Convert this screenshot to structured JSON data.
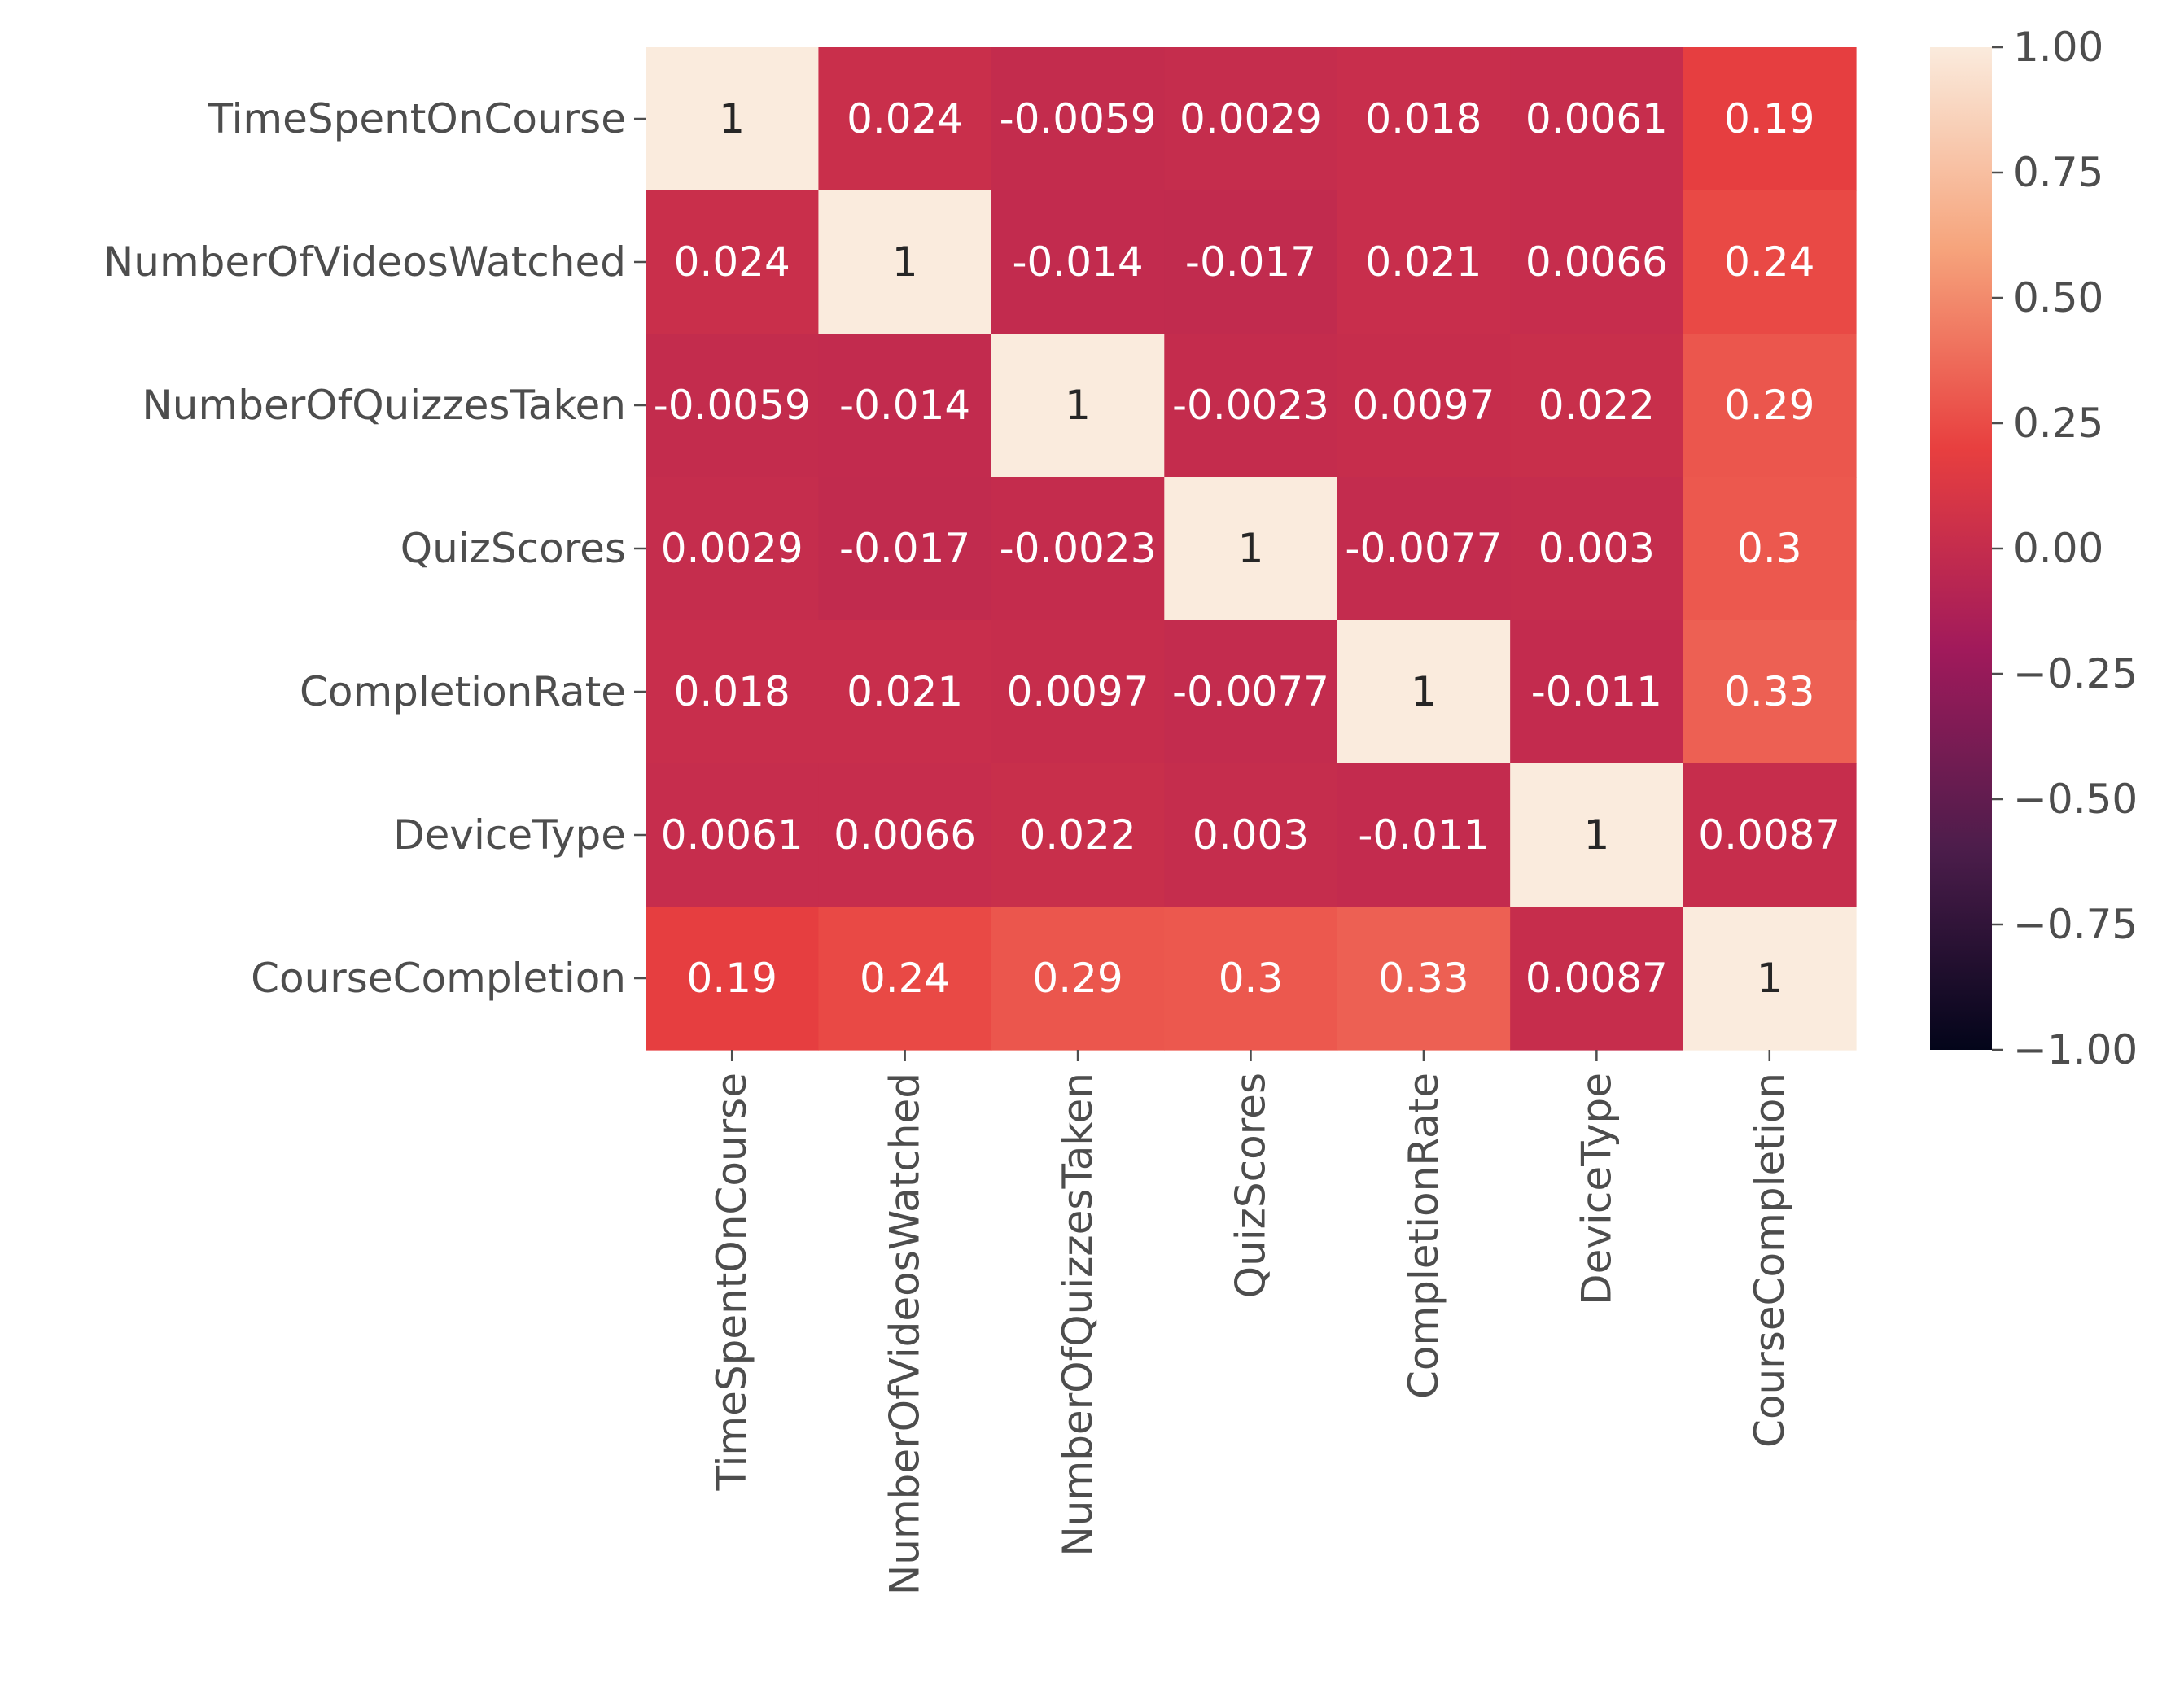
{
  "chart_data": {
    "type": "heatmap",
    "title": "",
    "xlabel": "",
    "ylabel": "",
    "row_labels": [
      "TimeSpentOnCourse",
      "NumberOfVideosWatched",
      "NumberOfQuizzesTaken",
      "QuizScores",
      "CompletionRate",
      "DeviceType",
      "CourseCompletion"
    ],
    "col_labels": [
      "TimeSpentOnCourse",
      "NumberOfVideosWatched",
      "NumberOfQuizzesTaken",
      "QuizScores",
      "CompletionRate",
      "DeviceType",
      "CourseCompletion"
    ],
    "values": [
      [
        1,
        0.024,
        -0.0059,
        0.0029,
        0.018,
        0.0061,
        0.19
      ],
      [
        0.024,
        1,
        -0.014,
        -0.017,
        0.021,
        0.0066,
        0.24
      ],
      [
        -0.0059,
        -0.014,
        1,
        -0.0023,
        0.0097,
        0.022,
        0.29
      ],
      [
        0.0029,
        -0.017,
        -0.0023,
        1,
        -0.0077,
        0.003,
        0.3
      ],
      [
        0.018,
        0.021,
        0.0097,
        -0.0077,
        1,
        -0.011,
        0.33
      ],
      [
        0.0061,
        0.0066,
        0.022,
        0.003,
        -0.011,
        1,
        0.0087
      ],
      [
        0.19,
        0.24,
        0.29,
        0.3,
        0.33,
        0.0087,
        1
      ]
    ],
    "cell_labels": [
      [
        "1",
        "0.024",
        "-0.0059",
        "0.0029",
        "0.018",
        "0.0061",
        "0.19"
      ],
      [
        "0.024",
        "1",
        "-0.014",
        "-0.017",
        "0.021",
        "0.0066",
        "0.24"
      ],
      [
        "-0.0059",
        "-0.014",
        "1",
        "-0.0023",
        "0.0097",
        "0.022",
        "0.29"
      ],
      [
        "0.0029",
        "-0.017",
        "-0.0023",
        "1",
        "-0.0077",
        "0.003",
        "0.3"
      ],
      [
        "0.018",
        "0.021",
        "0.0097",
        "-0.0077",
        "1",
        "-0.011",
        "0.33"
      ],
      [
        "0.0061",
        "0.0066",
        "0.022",
        "0.003",
        "-0.011",
        "1",
        "0.0087"
      ],
      [
        "0.19",
        "0.24",
        "0.29",
        "0.3",
        "0.33",
        "0.0087",
        "1"
      ]
    ],
    "colorbar": {
      "range": [
        -1,
        1
      ],
      "ticks": [
        1.0,
        0.75,
        0.5,
        0.25,
        0.0,
        -0.25,
        -0.5,
        -0.75,
        -1.0
      ],
      "tick_labels": [
        "1.00",
        "0.75",
        "0.50",
        "0.25",
        "0.00",
        "−0.25",
        "−0.50",
        "−0.75",
        "−1.00"
      ],
      "colormap": "rocket",
      "color_stops": [
        "#03051a",
        "#4c1d4b",
        "#a11a5b",
        "#e83f3f",
        "#f6a47c",
        "#faebdd"
      ]
    }
  }
}
